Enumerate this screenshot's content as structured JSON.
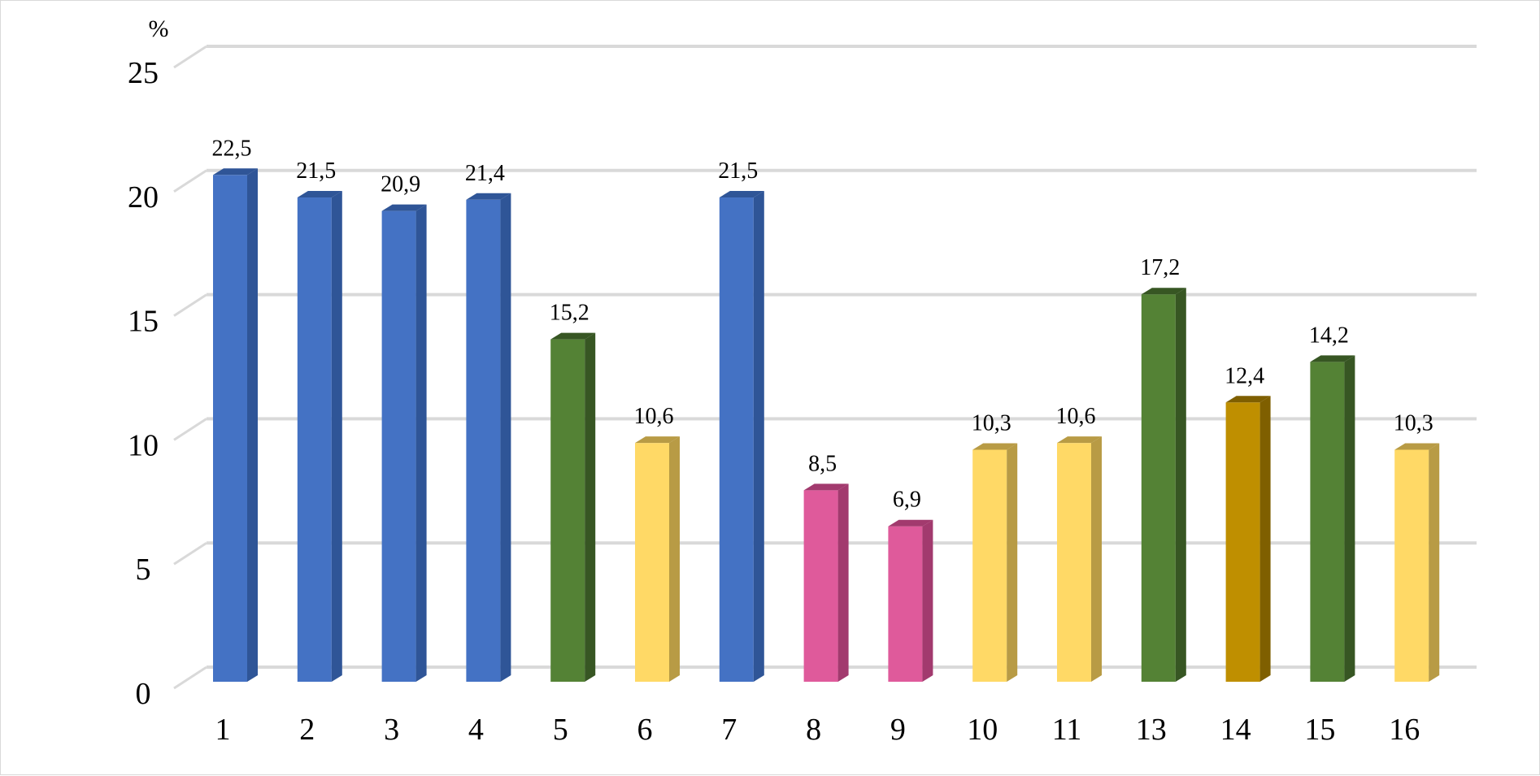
{
  "chart_data": {
    "type": "bar",
    "title": "",
    "ylabel": "%",
    "xlabel": "",
    "ylim": [
      0,
      25
    ],
    "yticks": [
      0,
      5,
      10,
      15,
      20,
      25
    ],
    "ytick_labels": [
      "0",
      "5",
      "10",
      "15",
      "20",
      "25"
    ],
    "grid": true,
    "legend": "none",
    "categories": [
      "1",
      "2",
      "3",
      "4",
      "5",
      "6",
      "7",
      "8",
      "9",
      "10",
      "11",
      "13",
      "14",
      "15",
      "16"
    ],
    "values": [
      22.5,
      21.5,
      20.9,
      21.4,
      15.2,
      10.6,
      21.5,
      8.5,
      6.9,
      10.3,
      10.6,
      17.2,
      12.4,
      14.2,
      10.3
    ],
    "value_labels": [
      "22,5",
      "21,5",
      "20,9",
      "21,4",
      "15,2",
      "10,6",
      "21,5",
      "8,5",
      "6,9",
      "10,3",
      "10,6",
      "17,2",
      "12,4",
      "14,2",
      "10,3"
    ],
    "bar_colors": [
      "#4472C4",
      "#4472C4",
      "#4472C4",
      "#4472C4",
      "#548235",
      "#FFD966",
      "#4472C4",
      "#DF5A9B",
      "#DF5A9B",
      "#FFD966",
      "#FFD966",
      "#548235",
      "#BF8F00",
      "#548235",
      "#FFD966"
    ],
    "bar_side_colors": [
      "#2F5597",
      "#2F5597",
      "#2F5597",
      "#2F5597",
      "#375623",
      "#B89B45",
      "#2F5597",
      "#A23A6E",
      "#A23A6E",
      "#B89B45",
      "#B89B45",
      "#375623",
      "#7F5F00",
      "#375623",
      "#B89B45"
    ],
    "grid_color": "#D9D9D9"
  }
}
